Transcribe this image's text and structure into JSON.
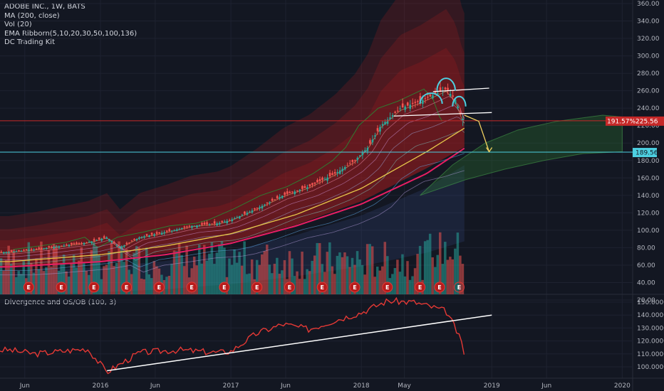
{
  "legend": {
    "symbol": "ADOBE INC., 1W, BATS",
    "ma": "MA (200, close)",
    "vol": "Vol (20)",
    "ema": "EMA Ribborn(5,10,20,30,50,100,136)",
    "kit": "DC Trading Kit"
  },
  "oscillator": {
    "title": "Divergence and OS/OB (100, 3)"
  },
  "tags": {
    "price_pct": "191.57%",
    "price": "225.56",
    "support": "189.56"
  },
  "earnings_label": "E",
  "colors": {
    "background": "#131722",
    "candle_up": "#26a69a",
    "candle_down": "#ef5350",
    "ma200": "#e91e63",
    "oscillator": "#e53935",
    "support_line": "#4dd0e1",
    "resistance_line": "#c62828",
    "pattern": "#4dd0e1",
    "projection": "#f0d060"
  },
  "chart_data": [
    {
      "type": "line",
      "title": "ADOBE INC., 1W, BATS",
      "price_axis": [
        20,
        40,
        60,
        80,
        100,
        120,
        140,
        160,
        180,
        200,
        220,
        240,
        260,
        280,
        300,
        320,
        340,
        360
      ],
      "price_axis_labels": [
        "20.00",
        "40.00",
        "60.00",
        "80.00",
        "100.00",
        "120.00",
        "140.00",
        "160.00",
        "180.00",
        "200.00",
        "220.00",
        "240.00",
        "260.00",
        "280.00",
        "300.00",
        "320.00",
        "340.00",
        "360.00"
      ],
      "time_axis_labels": [
        "Jun",
        "2016",
        "Jun",
        "2017",
        "Jun",
        "2018",
        "May",
        "2019",
        "Jun",
        "2020"
      ],
      "close_series": {
        "x": [
          2015.3,
          2015.5,
          2015.7,
          2015.9,
          2016.05,
          2016.15,
          2016.3,
          2016.5,
          2016.7,
          2016.9,
          2017.0,
          2017.2,
          2017.4,
          2017.6,
          2017.8,
          2017.95,
          2018.05,
          2018.15,
          2018.3,
          2018.45,
          2018.55,
          2018.65,
          2018.72,
          2018.77,
          2018.79
        ],
        "y": [
          75,
          78,
          82,
          86,
          92,
          80,
          92,
          98,
          105,
          108,
          112,
          125,
          140,
          150,
          165,
          180,
          195,
          220,
          240,
          248,
          255,
          262,
          250,
          230,
          225
        ]
      },
      "ma200": {
        "x": [
          2015.3,
          2016.0,
          2016.5,
          2017.0,
          2017.5,
          2018.0,
          2018.5,
          2018.8
        ],
        "y": [
          58,
          64,
          72,
          85,
          105,
          130,
          165,
          195
        ]
      },
      "ema136": {
        "x": [
          2015.3,
          2016.0,
          2016.5,
          2017.0,
          2017.5,
          2018.0,
          2018.5,
          2018.8
        ],
        "y": [
          64,
          72,
          82,
          96,
          118,
          148,
          190,
          218
        ]
      },
      "annotations": {
        "support_level": 189.56,
        "last_price": 225.56,
        "neckline": {
          "x": [
            2018.25,
            2019.0
          ],
          "y": [
            231,
            235
          ]
        },
        "top_line": {
          "x": [
            2018.55,
            2018.98
          ],
          "y": [
            259,
            263
          ]
        },
        "projection": {
          "x": [
            2018.79,
            2018.9,
            2018.98
          ],
          "y": [
            232,
            225,
            190
          ]
        }
      },
      "earnings_markers_x": [
        2015.45,
        2015.7,
        2015.95,
        2016.2,
        2016.45,
        2016.7,
        2016.95,
        2017.2,
        2017.45,
        2017.7,
        2017.95,
        2018.2,
        2018.45,
        2018.6,
        2018.75
      ]
    },
    {
      "type": "line",
      "title": "Divergence and OS/OB (100, 3)",
      "y_axis": [
        100,
        110,
        120,
        130,
        140,
        150
      ],
      "y_axis_labels": [
        "100.0000",
        "110.0000",
        "120.0000",
        "130.0000",
        "140.0000",
        "150.0000"
      ],
      "series": {
        "x": [
          2015.3,
          2015.5,
          2015.7,
          2015.9,
          2016.05,
          2016.3,
          2016.6,
          2016.9,
          2017.0,
          2017.2,
          2017.4,
          2017.6,
          2017.8,
          2018.0,
          2018.2,
          2018.4,
          2018.55,
          2018.65,
          2018.72,
          2018.77,
          2018.79
        ],
        "y": [
          113,
          110,
          112,
          114,
          96,
          111,
          113,
          111,
          112,
          126,
          133,
          129,
          136,
          142,
          151,
          150,
          146,
          143,
          130,
          118,
          110
        ]
      },
      "trendline": {
        "x": [
          2016.05,
          2019.0
        ],
        "y": [
          97,
          140
        ]
      }
    }
  ]
}
